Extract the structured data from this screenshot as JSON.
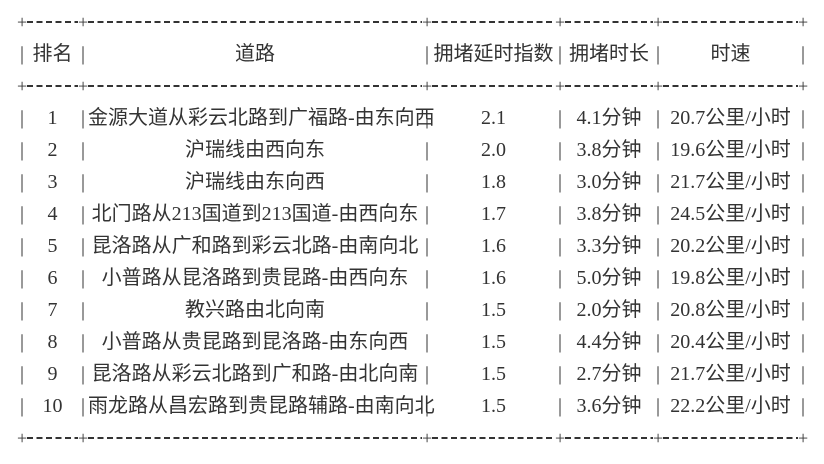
{
  "glyphs": {
    "pipe": "|",
    "plus": "+"
  },
  "chart_data": {
    "type": "table",
    "columns": [
      "排名",
      "道路",
      "拥堵延时指数",
      "拥堵时长",
      "时速"
    ],
    "rows": [
      {
        "rank": "1",
        "road": "金源大道从彩云北路到广福路-由东向西",
        "delay_index": "2.1",
        "duration": "4.1分钟",
        "speed": "20.7公里/小时"
      },
      {
        "rank": "2",
        "road": "沪瑞线由西向东",
        "delay_index": "2.0",
        "duration": "3.8分钟",
        "speed": "19.6公里/小时"
      },
      {
        "rank": "3",
        "road": "沪瑞线由东向西",
        "delay_index": "1.8",
        "duration": "3.0分钟",
        "speed": "21.7公里/小时"
      },
      {
        "rank": "4",
        "road": "北门路从213国道到213国道-由西向东",
        "delay_index": "1.7",
        "duration": "3.8分钟",
        "speed": "24.5公里/小时"
      },
      {
        "rank": "5",
        "road": "昆洛路从广和路到彩云北路-由南向北",
        "delay_index": "1.6",
        "duration": "3.3分钟",
        "speed": "20.2公里/小时"
      },
      {
        "rank": "6",
        "road": "小普路从昆洛路到贵昆路-由西向东",
        "delay_index": "1.6",
        "duration": "5.0分钟",
        "speed": "19.8公里/小时"
      },
      {
        "rank": "7",
        "road": "教兴路由北向南",
        "delay_index": "1.5",
        "duration": "2.0分钟",
        "speed": "20.8公里/小时"
      },
      {
        "rank": "8",
        "road": "小普路从贵昆路到昆洛路-由东向西",
        "delay_index": "1.5",
        "duration": "4.4分钟",
        "speed": "20.4公里/小时"
      },
      {
        "rank": "9",
        "road": "昆洛路从彩云北路到广和路-由北向南",
        "delay_index": "1.5",
        "duration": "2.7分钟",
        "speed": "21.7公里/小时"
      },
      {
        "rank": "10",
        "road": "雨龙路从昌宏路到贵昆路辅路-由南向北",
        "delay_index": "1.5",
        "duration": "3.6分钟",
        "speed": "22.2公里/小时"
      }
    ]
  }
}
